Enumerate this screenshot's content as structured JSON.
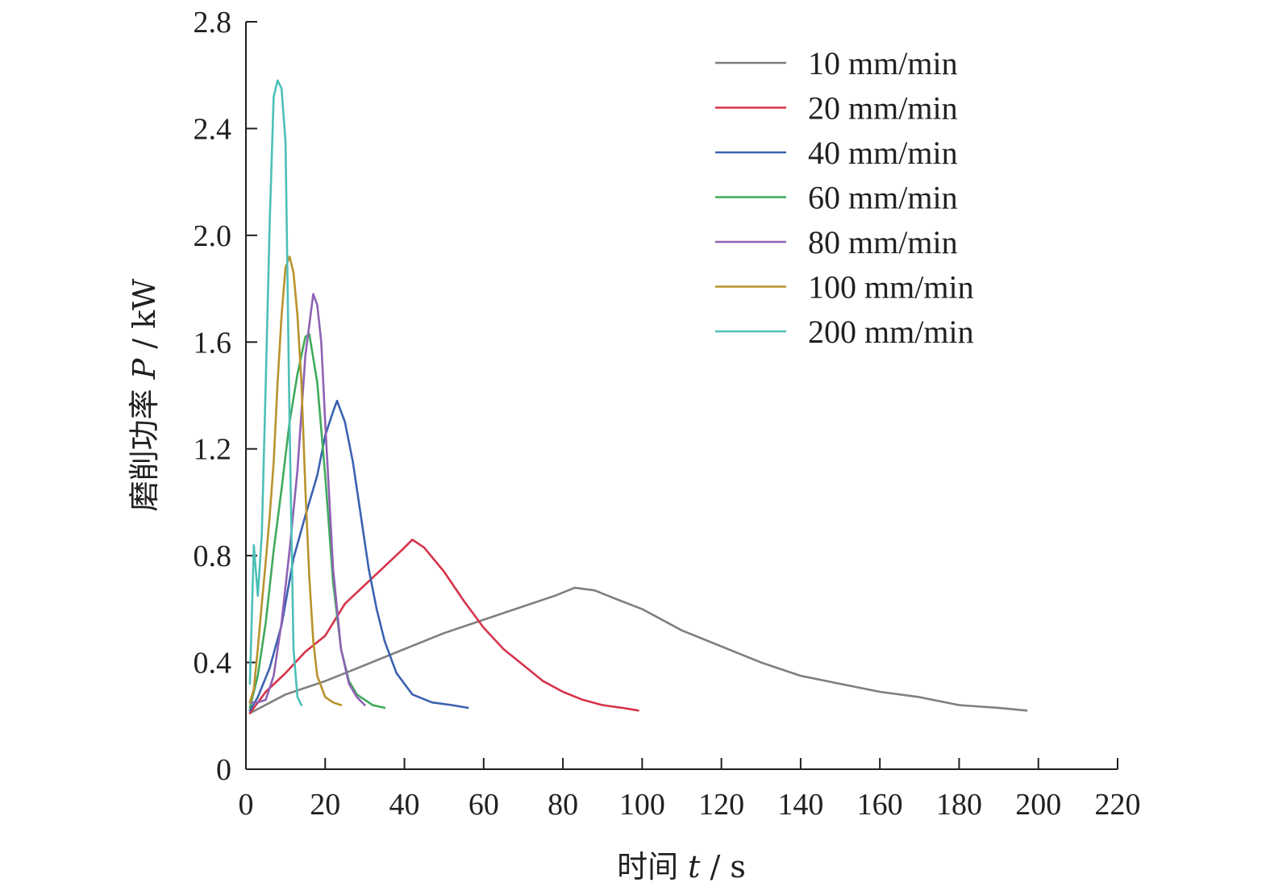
{
  "chart_data": {
    "type": "line",
    "xlabel": {
      "prefix": "时间 ",
      "var": "t",
      "suffix": " / s"
    },
    "ylabel": {
      "prefix": "磨削功率 ",
      "var": "P",
      "suffix": " / kW"
    },
    "xlim": [
      0,
      220
    ],
    "ylim": [
      0,
      2.8
    ],
    "xticks": [
      0,
      20,
      40,
      60,
      80,
      100,
      120,
      140,
      160,
      180,
      200,
      220
    ],
    "yticks": [
      0,
      0.4,
      0.8,
      1.2,
      1.6,
      2.0,
      2.4,
      2.8
    ],
    "ytick_labels": [
      "0",
      "0.4",
      "0.8",
      "1.2",
      "1.6",
      "2.0",
      "2.4",
      "2.8"
    ],
    "grid": false,
    "legend_position": "top-right",
    "series": [
      {
        "name": "10 mm/min",
        "color": "#7f7f7f",
        "x": [
          1,
          10,
          20,
          30,
          40,
          50,
          60,
          70,
          78,
          83,
          88,
          93,
          100,
          110,
          120,
          130,
          140,
          150,
          160,
          170,
          180,
          190,
          197
        ],
        "y": [
          0.21,
          0.28,
          0.33,
          0.39,
          0.45,
          0.51,
          0.56,
          0.61,
          0.65,
          0.68,
          0.67,
          0.64,
          0.6,
          0.52,
          0.46,
          0.4,
          0.35,
          0.32,
          0.29,
          0.27,
          0.24,
          0.23,
          0.22
        ]
      },
      {
        "name": "20 mm/min",
        "color": "#d6334a",
        "x": [
          1,
          5,
          10,
          15,
          20,
          25,
          30,
          35,
          40,
          42,
          45,
          50,
          55,
          60,
          65,
          70,
          75,
          80,
          85,
          90,
          95,
          99
        ],
        "y": [
          0.21,
          0.29,
          0.36,
          0.44,
          0.5,
          0.62,
          0.69,
          0.76,
          0.83,
          0.86,
          0.83,
          0.74,
          0.63,
          0.53,
          0.45,
          0.39,
          0.33,
          0.29,
          0.26,
          0.24,
          0.23,
          0.22
        ]
      },
      {
        "name": "40 mm/min",
        "color": "#3a62b0",
        "x": [
          1,
          3,
          6,
          9,
          12,
          15,
          18,
          20,
          22,
          23,
          25,
          27,
          29,
          31,
          33,
          35,
          38,
          42,
          47,
          52,
          56
        ],
        "y": [
          0.22,
          0.27,
          0.38,
          0.54,
          0.79,
          0.95,
          1.1,
          1.25,
          1.34,
          1.38,
          1.3,
          1.15,
          0.95,
          0.75,
          0.6,
          0.48,
          0.36,
          0.28,
          0.25,
          0.24,
          0.23
        ]
      },
      {
        "name": "60 mm/min",
        "color": "#3faa5c",
        "x": [
          1,
          3,
          5,
          7,
          9,
          11,
          13,
          15,
          16,
          18,
          20,
          22,
          24,
          26,
          28,
          30,
          32,
          35
        ],
        "y": [
          0.23,
          0.35,
          0.55,
          0.82,
          1.05,
          1.3,
          1.48,
          1.62,
          1.63,
          1.45,
          1.1,
          0.7,
          0.45,
          0.33,
          0.28,
          0.26,
          0.24,
          0.23
        ]
      },
      {
        "name": "80 mm/min",
        "color": "#8e62b4",
        "x": [
          1,
          3,
          5,
          7,
          9,
          11,
          13,
          15,
          17,
          18,
          19,
          20,
          22,
          24,
          26,
          28,
          30
        ],
        "y": [
          0.25,
          0.25,
          0.26,
          0.35,
          0.55,
          0.82,
          1.12,
          1.55,
          1.78,
          1.74,
          1.6,
          1.3,
          0.75,
          0.45,
          0.32,
          0.27,
          0.24
        ]
      },
      {
        "name": "100 mm/min",
        "color": "#b8922c",
        "x": [
          1,
          2,
          3,
          4,
          5,
          6,
          7,
          8,
          9,
          10,
          11,
          12,
          13,
          14,
          15,
          16,
          17,
          18,
          20,
          22,
          24
        ],
        "y": [
          0.25,
          0.3,
          0.45,
          0.62,
          0.78,
          0.95,
          1.15,
          1.45,
          1.7,
          1.88,
          1.92,
          1.86,
          1.7,
          1.45,
          1.05,
          0.72,
          0.48,
          0.35,
          0.27,
          0.25,
          0.24
        ]
      },
      {
        "name": "200 mm/min",
        "color": "#4cc0b8",
        "x": [
          1,
          2,
          3,
          4,
          5,
          6,
          7,
          8,
          9,
          10,
          11,
          12,
          13,
          14
        ],
        "y": [
          0.32,
          0.84,
          0.65,
          0.88,
          1.45,
          2.05,
          2.52,
          2.58,
          2.55,
          2.35,
          1.3,
          0.45,
          0.27,
          0.24
        ]
      }
    ]
  }
}
